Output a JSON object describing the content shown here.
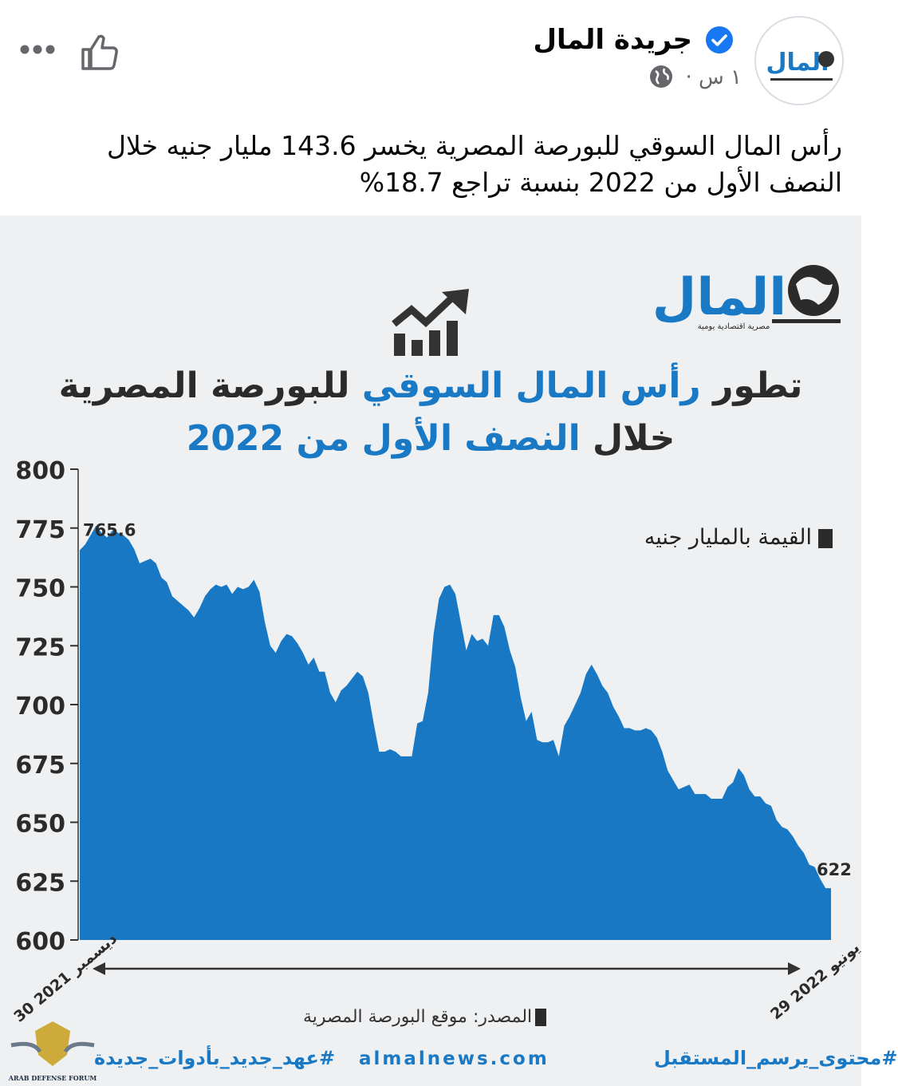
{
  "post": {
    "page_name": "جريدة المال",
    "timestamp": "١ س ·",
    "text": "رأس المال السوقي للبورصة المصرية يخسر 143.6 مليار جنيه خلال النصف الأول من 2022 بنسبة تراجع 18.7%",
    "avatar_text": "المال"
  },
  "infographic": {
    "logo_text": "المال",
    "logo_sub": "مصرية اقتصادية يومية",
    "title_part1_dark": "تطور",
    "title_part1_blue": "رأس المال السوقي",
    "title_part1_dark2": "للبورصة المصرية",
    "title_part2_dark": "خلال",
    "title_part2_blue": "النصف الأول من 2022",
    "legend": "القيمة بالمليار جنيه",
    "source": "المصدر: موقع البورصة المصرية",
    "footer_left": "#عهد_جديد_بأدوات_جديدة",
    "footer_center": "almalnews.com",
    "footer_right": "#محتوى_يرسم_المستقبل",
    "watermark_text": "ARAB DEFENSE FORUM"
  },
  "colors": {
    "accent": "#1a79c4",
    "area": "#1878c4",
    "dark": "#2b2b2b",
    "verified": "#1877f2"
  },
  "chart_data": {
    "type": "area",
    "yticks": [
      800,
      775,
      750,
      725,
      700,
      675,
      650,
      625,
      600
    ],
    "ylim": [
      600,
      800
    ],
    "x_start_label": "30 ديسمبر 2021",
    "x_end_label": "29 يونيو 2022",
    "first_value_label": "765.6",
    "last_value_label": "622",
    "values": [
      765.6,
      768,
      772,
      776,
      773,
      771,
      774,
      773,
      772,
      770,
      766,
      760,
      761,
      762,
      760,
      754,
      752,
      746,
      744,
      742,
      740,
      737,
      741,
      746,
      749,
      751,
      750,
      751,
      747,
      750,
      749,
      750,
      753,
      748,
      735,
      725,
      722,
      727,
      730,
      729,
      726,
      722,
      717,
      720,
      714,
      714,
      705,
      701,
      706,
      708,
      711,
      714,
      712,
      705,
      692,
      680,
      680,
      681,
      680,
      678,
      678,
      678,
      692,
      693,
      705,
      730,
      745,
      750,
      751,
      747,
      735,
      723,
      730,
      727,
      728,
      725,
      738,
      738,
      733,
      723,
      716,
      703,
      693,
      697,
      685,
      684,
      684,
      685,
      678,
      691,
      695,
      700,
      705,
      713,
      717,
      713,
      708,
      705,
      699,
      695,
      690,
      690,
      689,
      689,
      690,
      689,
      686,
      680,
      672,
      668,
      664,
      665,
      666,
      662,
      662,
      662,
      660,
      660,
      660,
      665,
      667,
      673,
      670,
      664,
      661,
      661,
      658,
      657,
      651,
      648,
      647,
      644,
      640,
      637,
      632,
      631,
      626,
      622,
      622
    ]
  }
}
